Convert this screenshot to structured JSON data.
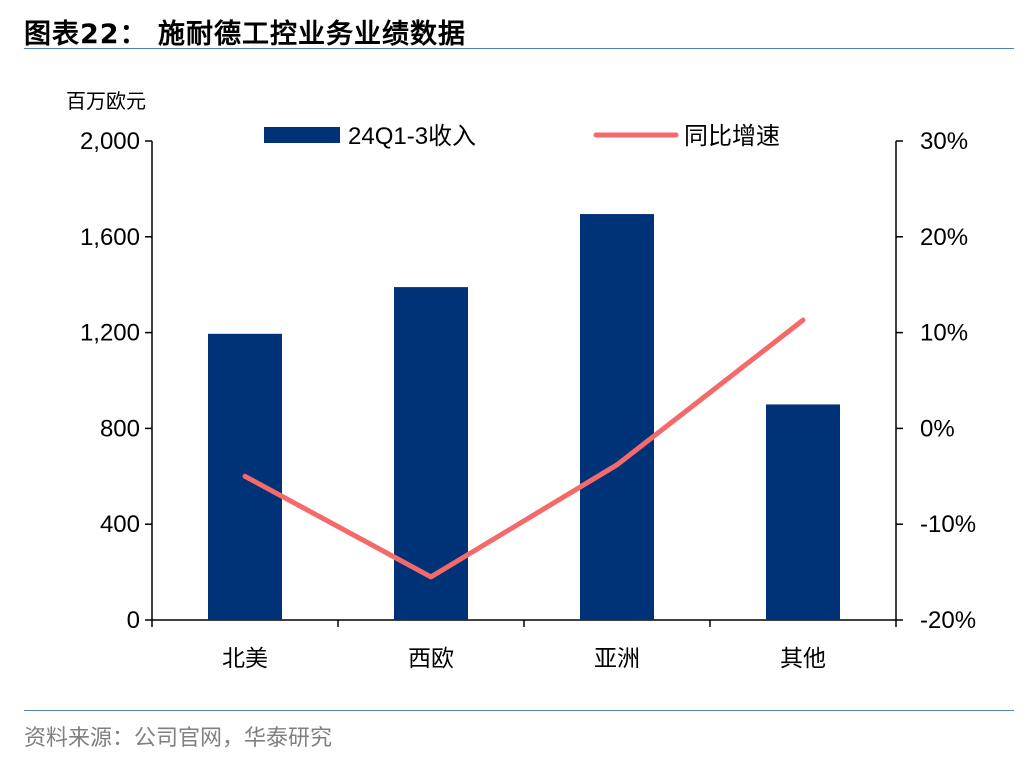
{
  "header": {
    "title": "图表22： 施耐德工控业务业绩数据"
  },
  "footer": {
    "source": "资料来源：公司官网，华泰研究"
  },
  "colors": {
    "bar": "#003278",
    "line": "#f46a6a",
    "rule": "#4f81bd"
  },
  "chart_data": {
    "type": "bar",
    "categories": [
      "北美",
      "西欧",
      "亚洲",
      "其他"
    ],
    "series": [
      {
        "name": "24Q1-3收入",
        "type": "bar",
        "axis": "left",
        "values": [
          1195,
          1390,
          1695,
          900
        ]
      },
      {
        "name": "同比增速",
        "type": "line",
        "axis": "right",
        "values": [
          -5.0,
          -15.5,
          -3.8,
          11.3
        ]
      }
    ],
    "left_axis": {
      "unit": "百万欧元",
      "ylim": [
        0,
        2000
      ],
      "ticks": [
        0,
        400,
        800,
        1200,
        1600,
        2000
      ],
      "tick_labels": [
        "0",
        "400",
        "800",
        "1,200",
        "1,600",
        "2,000"
      ]
    },
    "right_axis": {
      "ylim": [
        -20,
        30
      ],
      "ticks": [
        -20,
        -10,
        0,
        10,
        20,
        30
      ],
      "tick_labels": [
        "-20%",
        "-10%",
        "0%",
        "10%",
        "20%",
        "30%"
      ]
    },
    "legend_position": "top-center",
    "grid": false
  }
}
